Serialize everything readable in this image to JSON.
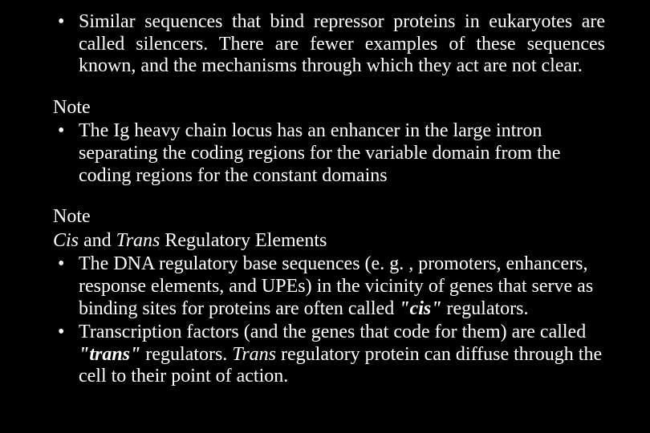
{
  "colors": {
    "background": "#000000",
    "text": "#ffffff"
  },
  "typography": {
    "font_family": "Times New Roman",
    "base_size_pt": 24,
    "line_height": 1.15
  },
  "sections": {
    "s1": {
      "bullets": [
        {
          "runs": [
            {
              "t": "Similar sequences that bind repressor proteins in eukaryotes are called silencers. There are fewer examples of these sequences known, and the mechanisms through which they act are not clear.",
              "style": "plain"
            }
          ],
          "justify": true
        }
      ]
    },
    "s2": {
      "label": "Note",
      "bullets": [
        {
          "runs": [
            {
              "t": "The Ig heavy chain locus has an enhancer in the large intron separating the coding regions for the variable domain from the coding regions for the constant domains",
              "style": "plain"
            }
          ],
          "justify": false
        }
      ]
    },
    "s3": {
      "label": "Note",
      "subtitle_runs": [
        {
          "t": "Cis",
          "style": "italic"
        },
        {
          "t": " and ",
          "style": "plain"
        },
        {
          "t": "Trans",
          "style": "italic"
        },
        {
          "t": " Regulatory Elements",
          "style": "plain"
        }
      ],
      "bullets": [
        {
          "runs": [
            {
              "t": "The DNA regulatory base sequences (e. g. , promoters, enhancers, response elements, and UPEs) in the vicinity of genes that serve as binding sites for proteins are often called ",
              "style": "plain"
            },
            {
              "t": "\"cis\"",
              "style": "bolditalic"
            },
            {
              "t": " regulators.",
              "style": "plain"
            }
          ],
          "justify": false
        },
        {
          "runs": [
            {
              "t": "Transcription factors (and the genes that code for them) are called ",
              "style": "plain"
            },
            {
              "t": "\"trans\"",
              "style": "bolditalic"
            },
            {
              "t": " regulators. ",
              "style": "plain"
            },
            {
              "t": "Trans",
              "style": "italic"
            },
            {
              "t": " regulatory protein can diffuse through the cell to their point of action.",
              "style": "plain"
            }
          ],
          "justify": false
        }
      ]
    }
  }
}
